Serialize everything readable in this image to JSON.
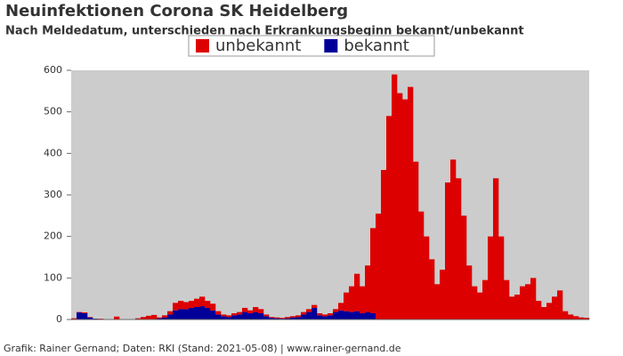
{
  "chart_data": {
    "type": "bar",
    "stacked": true,
    "title": "Neuinfektionen Corona SK Heidelberg",
    "subtitle": "Nach Meldedatum, unterschieden nach Erkrankungsbeginn bekannt/unbekannt",
    "footer": "Grafik: Rainer Gernand; Daten: RKI (Stand: 2021-05-08) | www.rainer-gernand.de",
    "legend_position": "top",
    "series": [
      {
        "name": "unbekannt",
        "color": "#dd0000",
        "values": [
          3,
          1,
          2,
          1,
          0,
          1,
          0,
          0,
          7,
          0,
          0,
          0,
          3,
          6,
          9,
          11,
          2,
          5,
          8,
          18,
          20,
          17,
          17,
          20,
          23,
          17,
          16,
          8,
          4,
          4,
          5,
          6,
          10,
          7,
          12,
          10,
          4,
          2,
          2,
          2,
          3,
          3,
          4,
          6,
          7,
          7,
          5,
          4,
          5,
          7,
          18,
          45,
          62,
          90,
          65,
          112,
          205,
          255,
          360,
          490,
          590,
          545,
          530,
          560,
          380,
          260,
          200,
          145,
          85,
          120,
          330,
          385,
          340,
          250,
          130,
          80,
          65,
          95,
          200,
          340,
          200,
          95,
          55,
          60,
          80,
          85,
          100,
          45,
          30,
          40,
          55,
          70,
          20,
          12,
          8,
          5,
          4
        ]
      },
      {
        "name": "bekannt",
        "color": "#000099",
        "values": [
          0,
          17,
          15,
          5,
          2,
          1,
          0,
          0,
          0,
          0,
          0,
          0,
          0,
          0,
          0,
          0,
          3,
          5,
          12,
          22,
          25,
          25,
          28,
          30,
          32,
          28,
          22,
          12,
          8,
          6,
          10,
          12,
          18,
          15,
          18,
          15,
          8,
          4,
          3,
          2,
          3,
          5,
          6,
          12,
          18,
          28,
          10,
          8,
          10,
          18,
          22,
          20,
          18,
          20,
          15,
          18,
          15,
          0,
          0,
          0,
          0,
          0,
          0,
          0,
          0,
          0,
          0,
          0,
          0,
          0,
          0,
          0,
          0,
          0,
          0,
          0,
          0,
          0,
          0,
          0,
          0,
          0,
          0,
          0,
          0,
          0,
          0,
          0,
          0,
          0,
          0,
          0,
          0,
          0,
          0,
          0,
          0
        ]
      }
    ],
    "ylim": [
      0,
      600
    ],
    "yticks": [
      0,
      100,
      200,
      300,
      400,
      500,
      600
    ],
    "grid": false
  }
}
